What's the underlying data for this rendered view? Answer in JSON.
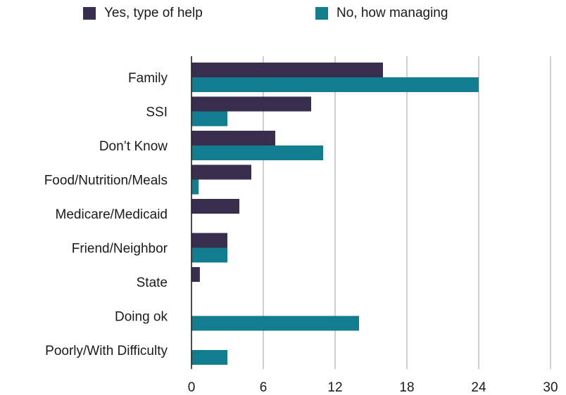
{
  "chart_data": {
    "type": "bar",
    "orientation": "horizontal",
    "categories": [
      "Family",
      "SSI",
      "Don’t Know",
      "Food/Nutrition/Meals",
      "Medicare/Medicaid",
      "Friend/Neighbor",
      "State",
      "Doing ok",
      "Poorly/With Difficulty"
    ],
    "series": [
      {
        "name": "Yes, type of help",
        "color": "#3a2e4f",
        "values": [
          16,
          10,
          7,
          5,
          4,
          3,
          0.7,
          0,
          0
        ]
      },
      {
        "name": "No, how managing",
        "color": "#127d8e",
        "values": [
          24,
          3,
          11,
          0.6,
          0,
          3,
          0,
          14,
          3
        ]
      }
    ],
    "xlim": [
      0,
      30
    ],
    "xticks": [
      0,
      6,
      12,
      18,
      24,
      30
    ],
    "grid": true,
    "legend_position": "top"
  }
}
